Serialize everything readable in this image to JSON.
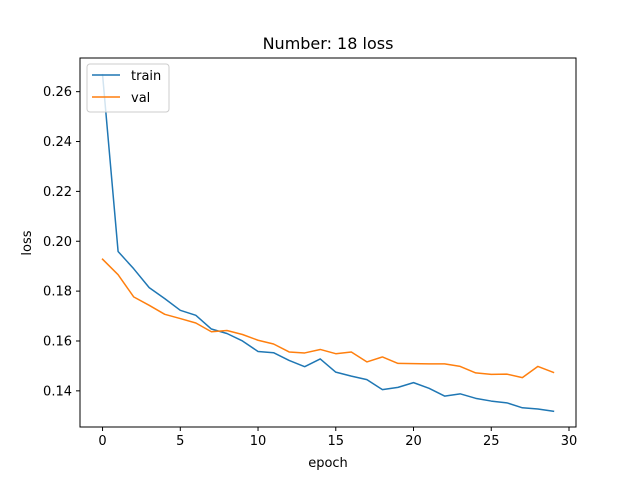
{
  "chart_data": {
    "type": "line",
    "title": "Number: 18 loss",
    "xlabel": "epoch",
    "ylabel": "loss",
    "xlim": [
      -1.45,
      30.45
    ],
    "ylim": [
      0.1255,
      0.2735
    ],
    "xticks": [
      0,
      5,
      10,
      15,
      20,
      25,
      30
    ],
    "xtick_labels": [
      "0",
      "5",
      "10",
      "15",
      "20",
      "25",
      "30"
    ],
    "yticks": [
      0.14,
      0.16,
      0.18,
      0.2,
      0.22,
      0.24,
      0.26
    ],
    "ytick_labels": [
      "0.14",
      "0.16",
      "0.18",
      "0.20",
      "0.22",
      "0.24",
      "0.26"
    ],
    "grid": false,
    "legend_position": "upper left",
    "x": [
      0,
      1,
      2,
      3,
      4,
      5,
      6,
      7,
      8,
      9,
      10,
      11,
      12,
      13,
      14,
      15,
      16,
      17,
      18,
      19,
      20,
      21,
      22,
      23,
      24,
      25,
      26,
      27,
      28,
      29
    ],
    "series": [
      {
        "name": "train",
        "color": "#1f77b4",
        "values": [
          0.2668,
          0.1959,
          0.189,
          0.1814,
          0.177,
          0.1723,
          0.1703,
          0.1648,
          0.163,
          0.16,
          0.1558,
          0.1553,
          0.1522,
          0.1497,
          0.1528,
          0.1475,
          0.1459,
          0.1445,
          0.1405,
          0.1414,
          0.1433,
          0.141,
          0.1379,
          0.1388,
          0.137,
          0.1359,
          0.1352,
          0.1332,
          0.1327,
          0.1318
        ]
      },
      {
        "name": "val",
        "color": "#ff7f0e",
        "values": [
          0.1928,
          0.1866,
          0.1777,
          0.1743,
          0.1707,
          0.169,
          0.1672,
          0.1637,
          0.1642,
          0.1626,
          0.1603,
          0.1588,
          0.1556,
          0.1552,
          0.1566,
          0.1549,
          0.1556,
          0.1516,
          0.1536,
          0.151,
          0.1509,
          0.1508,
          0.1508,
          0.1498,
          0.1472,
          0.1466,
          0.1467,
          0.1453,
          0.1498,
          0.1474
        ]
      }
    ]
  }
}
